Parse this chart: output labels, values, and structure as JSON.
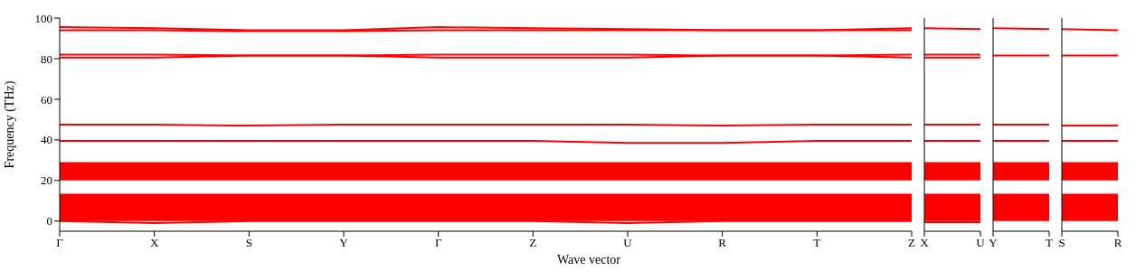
{
  "chart_data": [
    {
      "type": "line",
      "xlabel": "Wave vector",
      "ylabel": "Frequency (THz)",
      "categories": [
        "Γ",
        "X",
        "S",
        "Y",
        "Γ",
        "Z",
        "U",
        "R",
        "T",
        "Z"
      ],
      "ylim": [
        -5,
        100
      ],
      "yticks": [
        0,
        20,
        40,
        60,
        80,
        100
      ],
      "bands": [
        {
          "axis": "y",
          "from": 0,
          "to": 13.5,
          "color": "#ff0000"
        },
        {
          "axis": "y",
          "from": 20,
          "to": 29,
          "color": "#ff0000"
        }
      ],
      "series": [
        {
          "color": "#ff0000",
          "values": [
            95.5,
            95,
            94,
            94,
            95.5,
            95,
            94.5,
            94,
            94,
            95
          ]
        },
        {
          "color": "#ff0000",
          "values": [
            94,
            94,
            93.5,
            93.5,
            94,
            94,
            94,
            94,
            94,
            94
          ]
        },
        {
          "color": "#ff0000",
          "values": [
            82,
            82,
            81.5,
            81.5,
            82,
            82,
            82,
            81.5,
            81.5,
            82
          ]
        },
        {
          "color": "#ff0000",
          "values": [
            80.5,
            80.5,
            81.5,
            81.5,
            80.5,
            80.5,
            80.5,
            81.5,
            81.5,
            80.5
          ]
        },
        {
          "color": "#ff0000",
          "values": [
            47.5,
            47.5,
            47,
            47.5,
            47.5,
            47.5,
            47.5,
            47,
            47.5,
            47.5
          ]
        },
        {
          "color": "#ff0000",
          "values": [
            39.5,
            39.5,
            39.5,
            39.5,
            39.5,
            39.5,
            38.5,
            38.5,
            39.5,
            39.5
          ]
        },
        {
          "color": "#ff0000",
          "values": [
            0,
            -1,
            0,
            0,
            0,
            0,
            -1,
            0,
            0,
            0
          ]
        }
      ]
    },
    {
      "type": "line",
      "tick_labels": "x",
      "categories": [
        "X",
        "U"
      ],
      "ylim": [
        -5,
        100
      ],
      "yticks": [
        0,
        20,
        40,
        60,
        80,
        100
      ],
      "bands": [
        {
          "axis": "y",
          "from": 0,
          "to": 13.5,
          "color": "#ff0000"
        },
        {
          "axis": "y",
          "from": 20,
          "to": 29,
          "color": "#ff0000"
        }
      ],
      "series": [
        {
          "color": "#ff0000",
          "values": [
            95,
            94.5
          ]
        },
        {
          "color": "#ff0000",
          "values": [
            82,
            82
          ]
        },
        {
          "color": "#ff0000",
          "values": [
            80.5,
            80.5
          ]
        },
        {
          "color": "#ff0000",
          "values": [
            47.5,
            47.5
          ]
        },
        {
          "color": "#ff0000",
          "values": [
            39.5,
            39.5
          ]
        },
        {
          "color": "#ff0000",
          "values": [
            -0.5,
            -0.5
          ]
        }
      ]
    },
    {
      "type": "line",
      "tick_labels": "x",
      "categories": [
        "Y",
        "T"
      ],
      "ylim": [
        -5,
        100
      ],
      "yticks": [
        0,
        20,
        40,
        60,
        80,
        100
      ],
      "bands": [
        {
          "axis": "y",
          "from": 0,
          "to": 13.5,
          "color": "#ff0000"
        },
        {
          "axis": "y",
          "from": 20,
          "to": 29,
          "color": "#ff0000"
        }
      ],
      "series": [
        {
          "color": "#ff0000",
          "values": [
            95,
            94.5
          ]
        },
        {
          "color": "#ff0000",
          "values": [
            81.5,
            81.5
          ]
        },
        {
          "color": "#ff0000",
          "values": [
            47.5,
            47.5
          ]
        },
        {
          "color": "#ff0000",
          "values": [
            39.5,
            39.5
          ]
        }
      ]
    },
    {
      "type": "line",
      "tick_labels": "x",
      "categories": [
        "S",
        "R"
      ],
      "ylim": [
        -5,
        100
      ],
      "yticks": [
        0,
        20,
        40,
        60,
        80,
        100
      ],
      "bands": [
        {
          "axis": "y",
          "from": 0,
          "to": 13.5,
          "color": "#ff0000"
        },
        {
          "axis": "y",
          "from": 20,
          "to": 29,
          "color": "#ff0000"
        }
      ],
      "series": [
        {
          "color": "#ff0000",
          "values": [
            94.5,
            94
          ]
        },
        {
          "color": "#ff0000",
          "values": [
            81.5,
            81.5
          ]
        },
        {
          "color": "#ff0000",
          "values": [
            47,
            47
          ]
        },
        {
          "color": "#ff0000",
          "values": [
            39.5,
            39.5
          ]
        }
      ]
    }
  ]
}
